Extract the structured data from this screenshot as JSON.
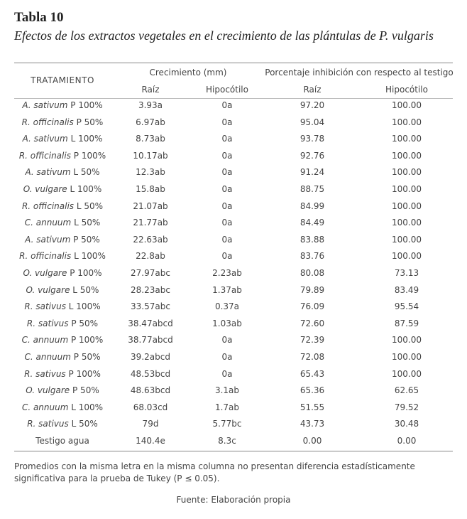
{
  "header": {
    "title": "Tabla 10",
    "subtitle": "Efectos de los extractos vegetales en el crecimiento de las plántulas de P. vulgaris"
  },
  "table": {
    "columns": {
      "treatment": "TRATAMIENTO",
      "growth": "Crecimiento (mm)",
      "inhibition": "Porcentaje inhibición con respecto al testigo",
      "growth_root": "Raíz",
      "growth_hypocotyl": "Hipocótilo",
      "inhibition_root": "Raíz",
      "inhibition_hypocotyl": "Hipocótilo"
    },
    "rows": [
      {
        "species": "A. sativum",
        "treatment": "P 100%",
        "cells": [
          "3.93a",
          "0a",
          "97.20",
          "100.00"
        ]
      },
      {
        "species": "R. officinalis",
        "treatment": "P 50%",
        "cells": [
          "6.97ab",
          "0a",
          "95.04",
          "100.00"
        ]
      },
      {
        "species": "A. sativum",
        "treatment": "L 100%",
        "cells": [
          "8.73ab",
          "0a",
          "93.78",
          "100.00"
        ]
      },
      {
        "species": "R. officinalis",
        "treatment": "P 100%",
        "cells": [
          "10.17ab",
          "0a",
          "92.76",
          "100.00"
        ]
      },
      {
        "species": "A. sativum",
        "treatment": "L 50%",
        "cells": [
          "12.3ab",
          "0a",
          "91.24",
          "100.00"
        ]
      },
      {
        "species": "O. vulgare",
        "treatment": "L 100%",
        "cells": [
          "15.8ab",
          "0a",
          "88.75",
          "100.00"
        ]
      },
      {
        "species": "R. officinalis",
        "treatment": "L 50%",
        "cells": [
          "21.07ab",
          "0a",
          "84.99",
          "100.00"
        ]
      },
      {
        "species": "C. annuum",
        "treatment": "L 50%",
        "cells": [
          "21.77ab",
          "0a",
          "84.49",
          "100.00"
        ]
      },
      {
        "species": "A. sativum",
        "treatment": "P 50%",
        "cells": [
          "22.63ab",
          "0a",
          "83.88",
          "100.00"
        ]
      },
      {
        "species": "R. officinalis",
        "treatment": "L 100%",
        "cells": [
          "22.8ab",
          "0a",
          "83.76",
          "100.00"
        ]
      },
      {
        "species": "O. vulgare",
        "treatment": "P 100%",
        "cells": [
          "27.97abc",
          "2.23ab",
          "80.08",
          "73.13"
        ]
      },
      {
        "species": "O. vulgare",
        "treatment": "L 50%",
        "cells": [
          "28.23abc",
          "1.37ab",
          "79.89",
          "83.49"
        ]
      },
      {
        "species": "R. sativus",
        "treatment": "L 100%",
        "cells": [
          "33.57abc",
          "0.37a",
          "76.09",
          "95.54"
        ]
      },
      {
        "species": "R. sativus",
        "treatment": "P 50%",
        "cells": [
          "38.47abcd",
          "1.03ab",
          "72.60",
          "87.59"
        ]
      },
      {
        "species": "C. annuum",
        "treatment": "P 100%",
        "cells": [
          "38.77abcd",
          "0a",
          "72.39",
          "100.00"
        ]
      },
      {
        "species": "C. annuum",
        "treatment": "P 50%",
        "cells": [
          "39.2abcd",
          "0a",
          "72.08",
          "100.00"
        ]
      },
      {
        "species": "R. sativus",
        "treatment": "P 100%",
        "cells": [
          "48.53bcd",
          "0a",
          "65.43",
          "100.00"
        ]
      },
      {
        "species": "O. vulgare",
        "treatment": "P 50%",
        "cells": [
          "48.63bcd",
          "3.1ab",
          "65.36",
          "62.65"
        ]
      },
      {
        "species": "C. annuum",
        "treatment": "L 100%",
        "cells": [
          "68.03cd",
          "1.7ab",
          "51.55",
          "79.52"
        ]
      },
      {
        "species": "R. sativus",
        "treatment": "L 50%",
        "cells": [
          "79d",
          "5.77bc",
          "43.73",
          "30.48"
        ]
      },
      {
        "treatment": "Testigo agua",
        "cells": [
          "140.4e",
          "8.3c",
          "0.00",
          "0.00"
        ]
      }
    ]
  },
  "footer": {
    "note": "Promedios con la misma letra en la misma columna no presentan diferencia estadísticamente significativa para la prueba de Tukey (P ≤ 0.05).",
    "source": "Fuente: Elaboración propia"
  }
}
